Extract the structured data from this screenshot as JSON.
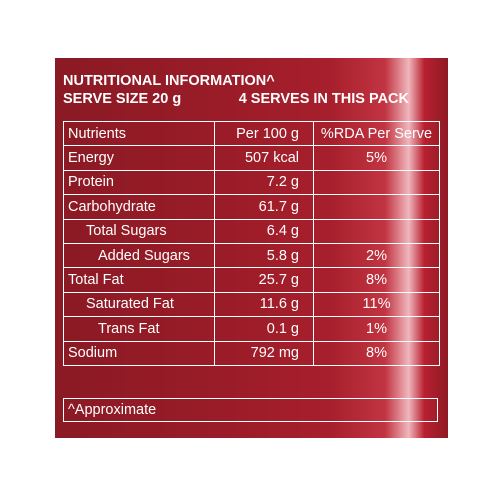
{
  "title": "NUTRITIONAL INFORMATION^",
  "serve_size": "SERVE SIZE 20 g",
  "serves": "4 SERVES IN THIS PACK",
  "columns": {
    "nutrients": "Nutrients",
    "per100": "Per 100 g",
    "rda": "%RDA Per Serve"
  },
  "rows": [
    {
      "name": "Energy",
      "per100": "507 kcal",
      "rda": "5%"
    },
    {
      "name": "Protein",
      "per100": "7.2 g",
      "rda": ""
    },
    {
      "name": "Carbohydrate",
      "per100": "61.7 g",
      "rda": ""
    },
    {
      "name": "Total Sugars",
      "per100": "6.4 g",
      "rda": ""
    },
    {
      "name": "Added Sugars",
      "per100": "5.8 g",
      "rda": "2%"
    },
    {
      "name": "Total Fat",
      "per100": "25.7 g",
      "rda": "8%"
    },
    {
      "name": "Saturated Fat",
      "per100": "11.6 g",
      "rda": "11%"
    },
    {
      "name": "Trans Fat",
      "per100": "0.1 g",
      "rda": "1%"
    },
    {
      "name": "Sodium",
      "per100": "792 mg",
      "rda": "8%"
    }
  ],
  "footnote": "^Approximate"
}
